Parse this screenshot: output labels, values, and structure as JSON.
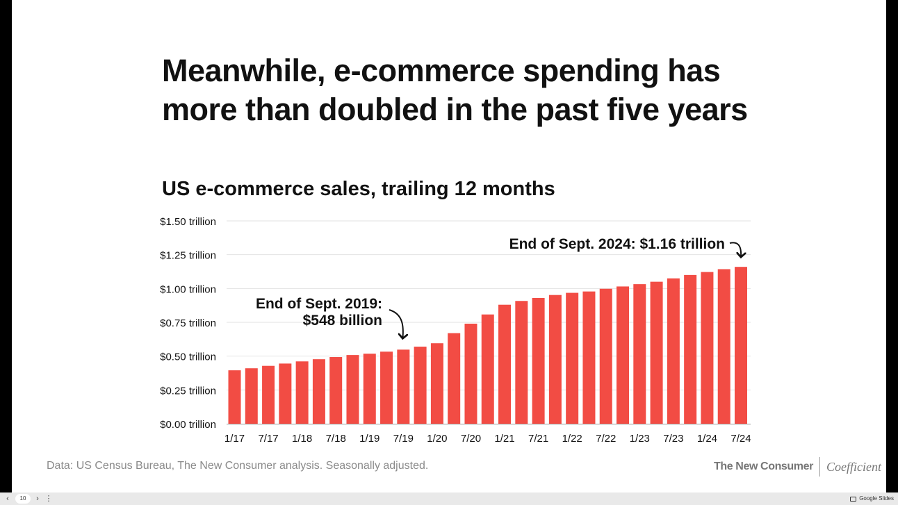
{
  "slide": {
    "headline_lines": [
      "Meanwhile, e-commerce spending has",
      "more than doubled in the past five years"
    ],
    "source": "Data: US Census Bureau, The New Consumer analysis. Seasonally adjusted.",
    "brand_primary": "The New Consumer",
    "brand_secondary": "Coefficient"
  },
  "bottom_bar": {
    "page_number": "10",
    "app_label": "Google Slides"
  },
  "colors": {
    "bar": "#f24c44",
    "text": "#111111",
    "grid": "#e2e2e2",
    "axis": "#999999"
  },
  "chart_data": {
    "type": "bar",
    "title": "US e-commerce sales, trailing 12 months",
    "xlabel": "",
    "ylabel": "",
    "ylim": [
      0,
      1.5
    ],
    "y_ticks": [
      0,
      0.25,
      0.5,
      0.75,
      1.0,
      1.25,
      1.5
    ],
    "y_tick_labels": [
      "$0.00 trillion",
      "$0.25 trillion",
      "$0.50 trillion",
      "$0.75 trillion",
      "$1.00 trillion",
      "$1.25 trillion",
      "$1.50 trillion"
    ],
    "x_tick_labels": [
      "1/17",
      "7/17",
      "1/18",
      "7/18",
      "1/19",
      "7/19",
      "1/20",
      "7/20",
      "1/21",
      "7/21",
      "1/22",
      "7/22",
      "1/23",
      "7/23",
      "1/24",
      "7/24"
    ],
    "grid": true,
    "values": [
      0.395,
      0.41,
      0.428,
      0.445,
      0.461,
      0.477,
      0.493,
      0.508,
      0.518,
      0.533,
      0.548,
      0.57,
      0.595,
      0.67,
      0.74,
      0.808,
      0.88,
      0.908,
      0.93,
      0.952,
      0.968,
      0.978,
      0.998,
      1.015,
      1.032,
      1.05,
      1.075,
      1.1,
      1.122,
      1.143,
      1.16
    ],
    "annotations": [
      {
        "lines": [
          "End of Sept. 2019:",
          "$548 billion"
        ],
        "bar_index": 10
      },
      {
        "lines": [
          "End of Sept. 2024: $1.16 trillion"
        ],
        "bar_index": 30
      }
    ]
  }
}
